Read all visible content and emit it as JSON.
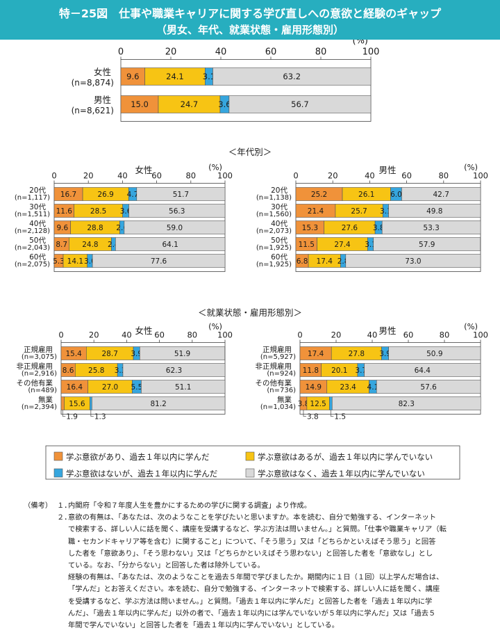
{
  "header": {
    "title": "特－25図　仕事や職業キャリアに関する学び直しへの意欲と経験のギャップ",
    "subtitle": "（男女、年代、就業状態・雇用形態別）"
  },
  "colors": {
    "s1": "#f0923a",
    "s2": "#f7c414",
    "s3": "#36a6de",
    "s4": "#d9d9d9",
    "text": "#1a1a1a",
    "header_bg": "#27aebf"
  },
  "chart_data": {
    "type": "bar",
    "stacked": true,
    "orientation": "horizontal",
    "axis_unit": "(%)",
    "ticks": [
      0,
      20,
      40,
      60,
      80,
      100
    ],
    "xlim": [
      0,
      100
    ],
    "legend": [
      "学ぶ意欲があり、過去１年以内に学んだ",
      "学ぶ意欲はあるが、過去１年以内に学んでいない",
      "学ぶ意欲はないが、過去１年以内に学んだ",
      "学ぶ意欲はなく、過去１年以内に学んでいない"
    ],
    "panels": [
      {
        "id": "total",
        "title": "",
        "rows": [
          {
            "name": "女性",
            "n": "(n=8,874)",
            "values": [
              9.6,
              24.1,
              3.1,
              63.2
            ]
          },
          {
            "name": "男性",
            "n": "(n=8,621)",
            "values": [
              15.0,
              24.7,
              3.6,
              56.7
            ]
          }
        ]
      },
      {
        "id": "age-female",
        "title": "女性",
        "rows": [
          {
            "name": "20代",
            "n": "(n=1,117)",
            "values": [
              16.7,
              26.9,
              4.7,
              51.7
            ]
          },
          {
            "name": "30代",
            "n": "(n=1,511)",
            "values": [
              11.6,
              28.5,
              3.6,
              56.3
            ]
          },
          {
            "name": "40代",
            "n": "(n=2,128)",
            "values": [
              9.6,
              28.8,
              2.6,
              59.0
            ]
          },
          {
            "name": "50代",
            "n": "(n=2,043)",
            "values": [
              8.7,
              24.8,
              2.4,
              64.1
            ]
          },
          {
            "name": "60代",
            "n": "(n=2,075)",
            "values": [
              5.3,
              14.1,
              3.0,
              77.6
            ]
          }
        ]
      },
      {
        "id": "age-male",
        "title": "男性",
        "rows": [
          {
            "name": "20代",
            "n": "(n=1,138)",
            "values": [
              25.2,
              26.1,
              6.0,
              42.7
            ]
          },
          {
            "name": "30代",
            "n": "(n=1,560)",
            "values": [
              21.4,
              25.7,
              3.1,
              49.8
            ]
          },
          {
            "name": "40代",
            "n": "(n=2,073)",
            "values": [
              15.3,
              27.6,
              3.8,
              53.3
            ]
          },
          {
            "name": "50代",
            "n": "(n=1,925)",
            "values": [
              11.5,
              27.4,
              3.1,
              57.9
            ]
          },
          {
            "name": "60代",
            "n": "(n=1,925)",
            "values": [
              6.8,
              17.4,
              2.8,
              73.0
            ]
          }
        ]
      },
      {
        "id": "emp-female",
        "title": "女性",
        "rows": [
          {
            "name": "正規雇用",
            "n": "(n=3,075)",
            "values": [
              15.4,
              28.7,
              3.9,
              51.9
            ]
          },
          {
            "name": "非正規雇用",
            "n": "(n=2,916)",
            "values": [
              8.6,
              25.8,
              3.3,
              62.3
            ]
          },
          {
            "name": "その他有業",
            "n": "(n=489)",
            "values": [
              16.4,
              27.0,
              5.5,
              51.1
            ]
          },
          {
            "name": "無業",
            "n": "(n=2,394)",
            "values": [
              1.9,
              15.6,
              1.3,
              81.2
            ]
          }
        ]
      },
      {
        "id": "emp-male",
        "title": "男性",
        "rows": [
          {
            "name": "正規雇用",
            "n": "(n=5,927)",
            "values": [
              17.4,
              27.8,
              3.9,
              50.9
            ]
          },
          {
            "name": "非正規雇用",
            "n": "(n=924)",
            "values": [
              11.8,
              20.1,
              3.7,
              64.4
            ]
          },
          {
            "name": "その他有業",
            "n": "(n=736)",
            "values": [
              14.9,
              23.4,
              4.1,
              57.6
            ]
          },
          {
            "name": "無業",
            "n": "(n=1,034)",
            "values": [
              3.8,
              12.5,
              1.5,
              82.3
            ]
          }
        ]
      }
    ],
    "section_titles": [
      "＜年代別＞",
      "＜就業状態・雇用形態別＞"
    ]
  },
  "notes": {
    "label": "（備考）",
    "items": [
      {
        "num": "１．",
        "lines": [
          "内閣府「令和７年度人生を豊かにするための学びに関する調査」より作成。"
        ]
      },
      {
        "num": "２．",
        "lines": [
          "意欲の有無は、「あなたは、次のようなことを学びたいと思いますか。本を読む、自分で勉強する、インターネット",
          "で検索する、詳しい人に話を聞く、講座を受講するなど、学ぶ方法は問いません。」と質問。「仕事や職業キャリア（転",
          "職・セカンドキャリア等を含む）に関すること」について、「そう思う」又は「どちらかといえばそう思う」と回答",
          "した者を「意欲あり」、「そう思わない」又は「どちらかといえばそう思わない」と回答した者を「意欲なし」とし",
          "ている。なお、「分からない」と回答した者は除外している。",
          "経験の有無は、「あなたは、次のようなことを過去５年間で学びましたか。期間内に１日（１回）以上学んだ場合は、",
          "「学んだ」とお答えください。本を読む、自分で勉強する、インターネットで検索する、詳しい人に話を聞く、講座",
          "を受講するなど、学ぶ方法は問いません。」と質問。「過去１年以内に学んだ」と回答した者を「過去１年以内に学",
          "んだ」、「過去１年以内に学んだ」以外の者で、「過去１年以内には学んでいないが５年以内に学んだ」又は「過去５",
          "年間で学んでいない」と回答した者を「過去１年以内に学んでいない」としている。"
        ]
      }
    ]
  }
}
